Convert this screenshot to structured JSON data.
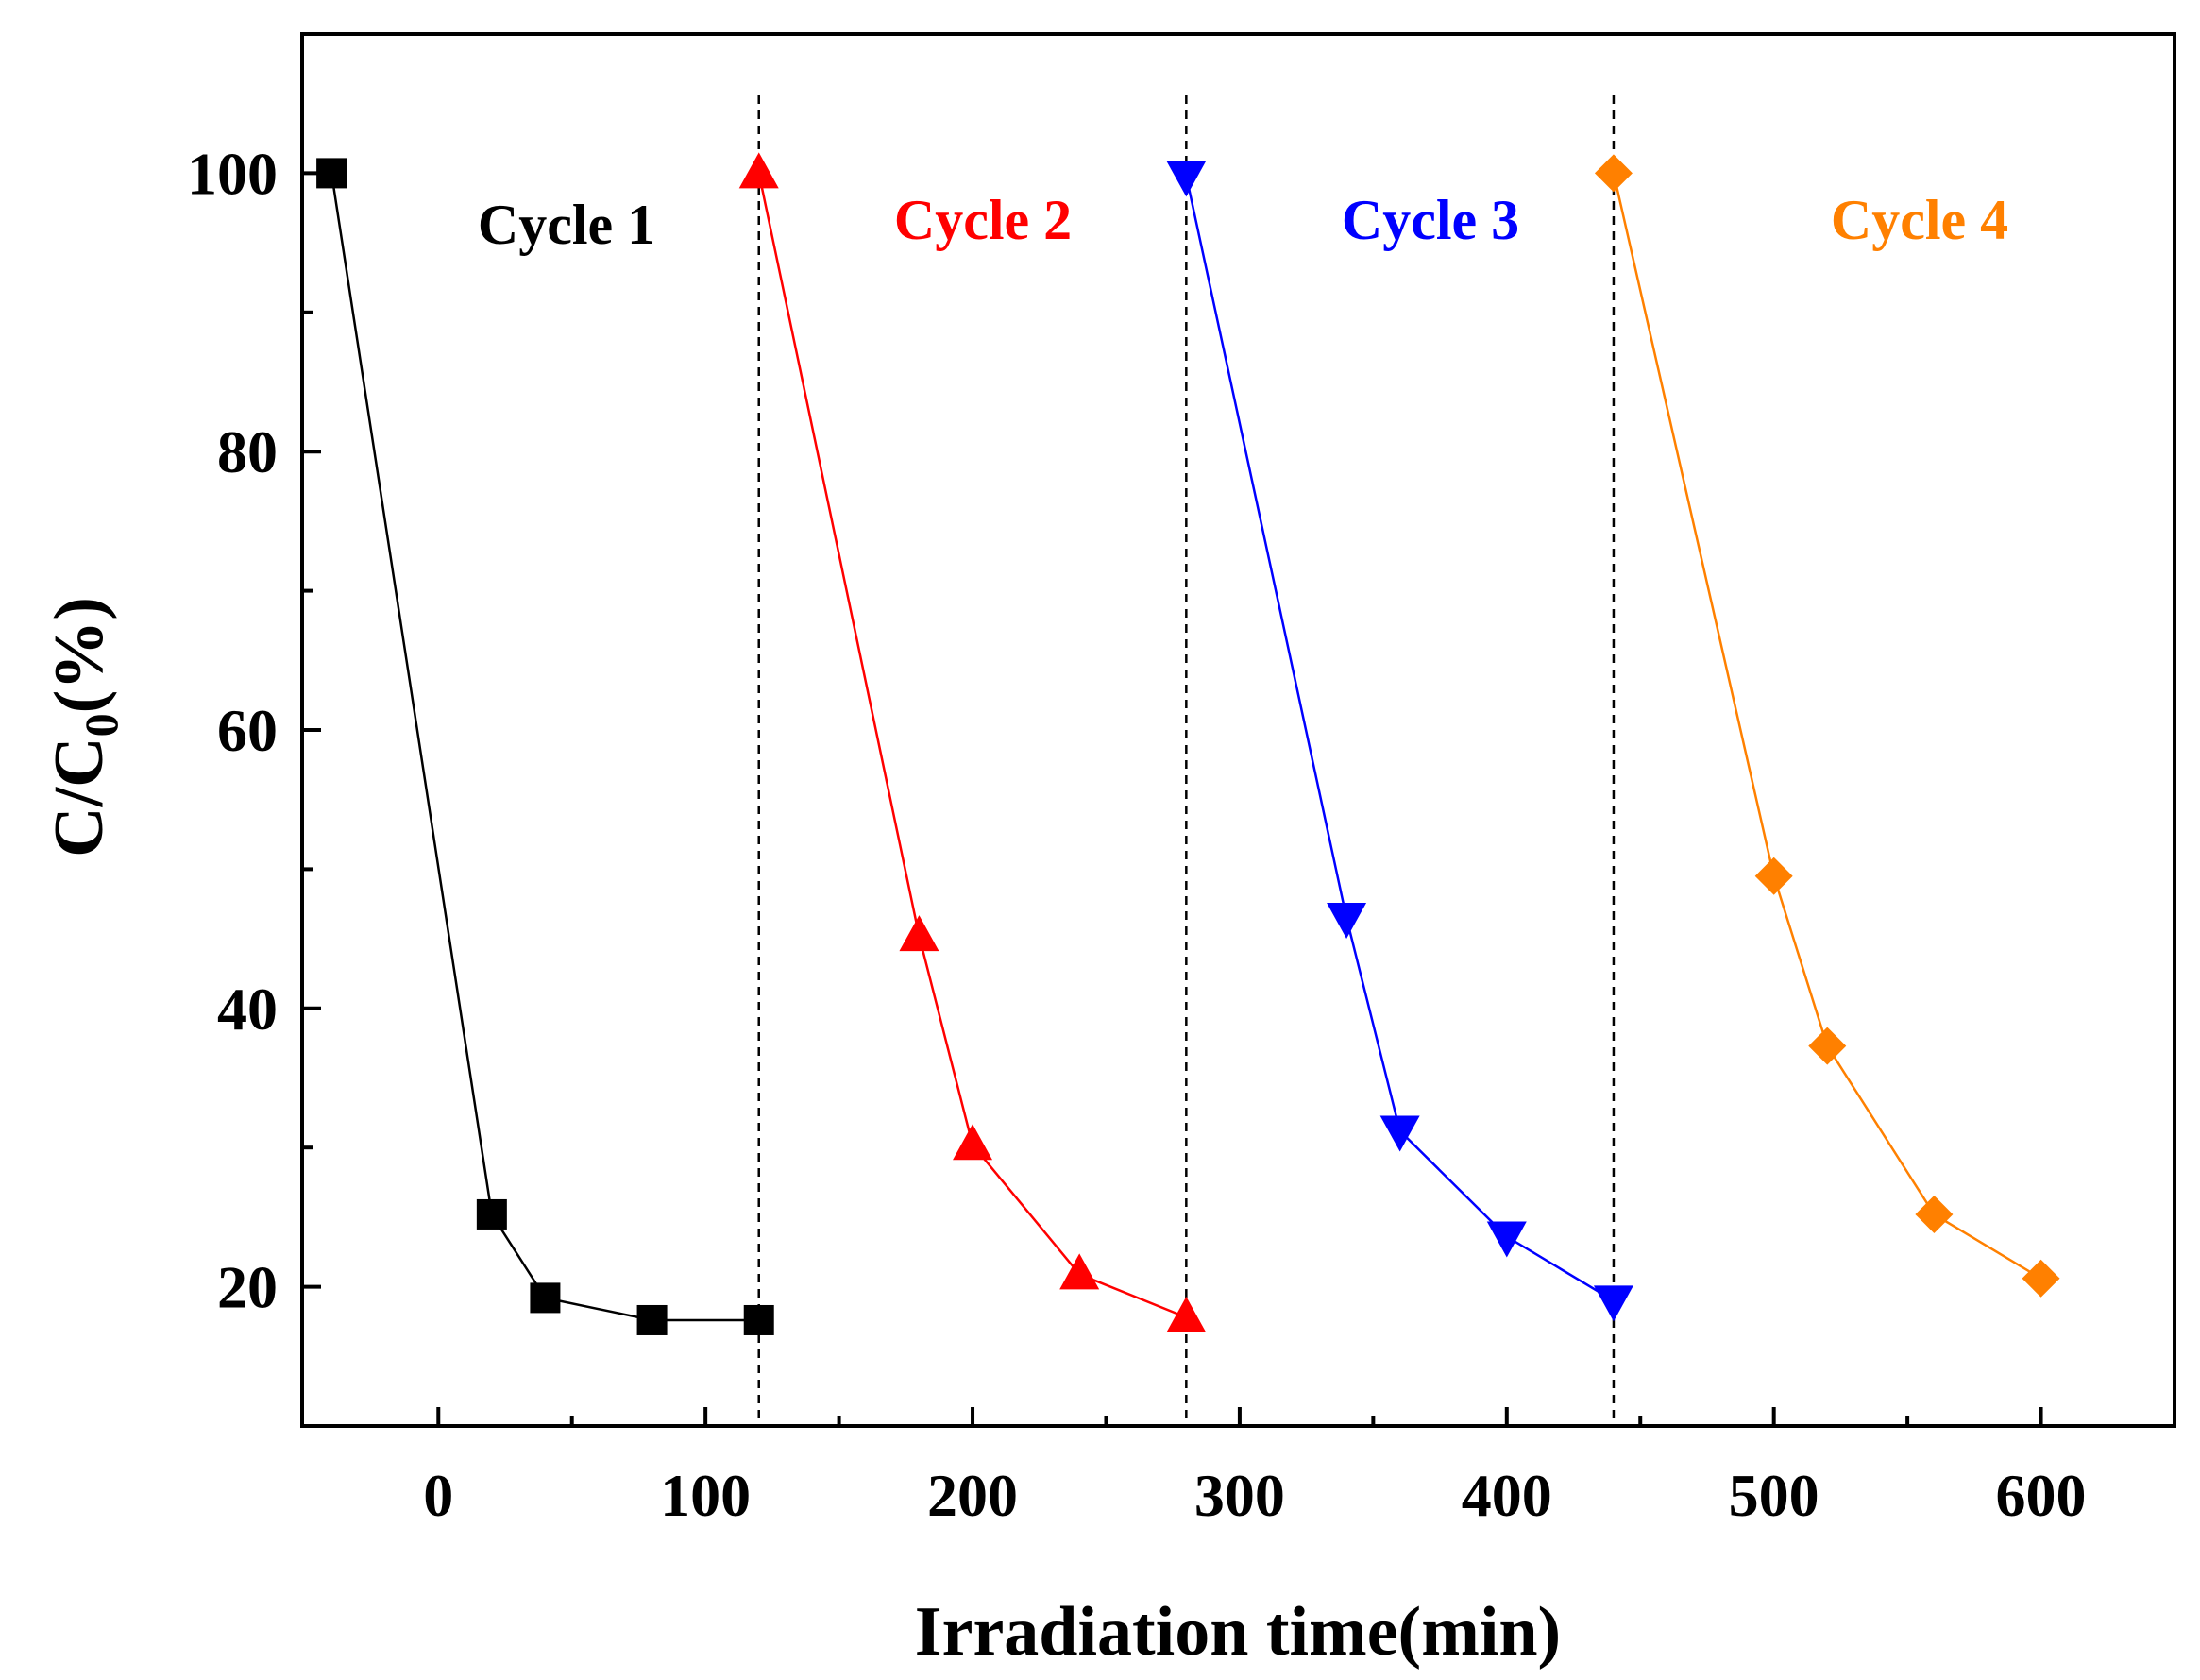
{
  "chart_data": {
    "type": "line",
    "title": "",
    "xlabel": "Irradiation time(min)",
    "ylabel_main": "C/C",
    "ylabel_sub": "0",
    "ylabel_tail": "(%)",
    "xlim": [
      -51,
      650
    ],
    "ylim": [
      10,
      110
    ],
    "xticks": [
      0,
      100,
      200,
      300,
      400,
      500,
      600
    ],
    "xtick_labels": [
      "0",
      "100",
      "200",
      "300",
      "400",
      "500",
      "600"
    ],
    "yticks": [
      20,
      40,
      60,
      80,
      100
    ],
    "ytick_labels": [
      "20",
      "40",
      "60",
      "80",
      "100"
    ],
    "dividers": [
      120,
      280,
      440
    ],
    "series": [
      {
        "name": "Cycle 1",
        "color": "#000000",
        "marker": "square",
        "x": [
          -40,
          20,
          40,
          80,
          120
        ],
        "values": [
          100,
          25.2,
          19.2,
          17.6,
          17.6
        ]
      },
      {
        "name": "Cycle 2",
        "color": "#ff0000",
        "marker": "triangle-up",
        "x": [
          120,
          180,
          200,
          240,
          280
        ],
        "values": [
          100,
          45.2,
          30.2,
          20.9,
          17.8
        ]
      },
      {
        "name": "Cycle 3",
        "color": "#0000ff",
        "marker": "triangle-down",
        "x": [
          280,
          340,
          360,
          400,
          440
        ],
        "values": [
          99.8,
          46.5,
          31.2,
          23.6,
          19.0
        ]
      },
      {
        "name": "Cycle 4",
        "color": "#ff8000",
        "marker": "diamond",
        "x": [
          440,
          500,
          520,
          560,
          600
        ],
        "values": [
          100,
          49.5,
          37.3,
          25.2,
          20.6
        ]
      }
    ]
  }
}
